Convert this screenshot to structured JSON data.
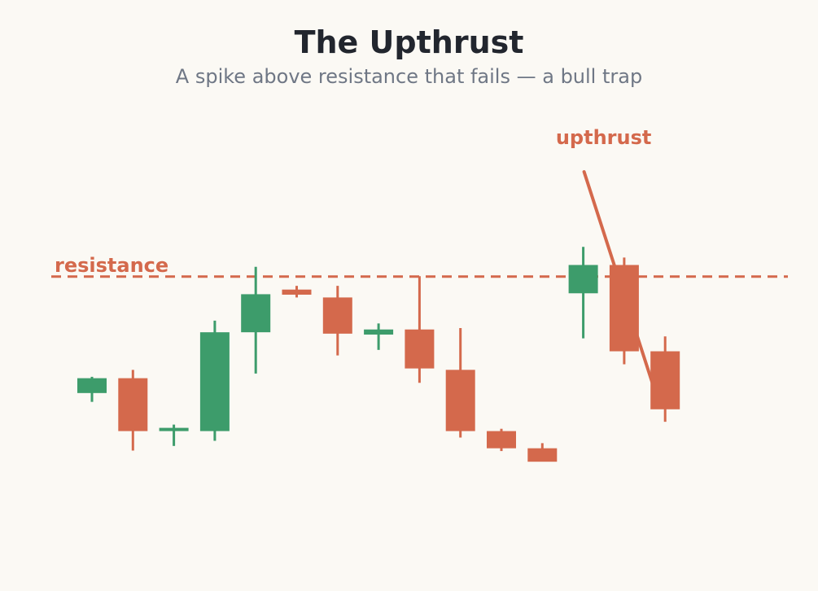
{
  "title": "The Upthrust",
  "subtitle": "A spike above resistance that fails — a bull trap",
  "colors": {
    "up": "#3d9c6b",
    "down": "#d4694c",
    "resistance": "#d4694c",
    "background": "#fbf9f4"
  },
  "chart_data": {
    "type": "candlestick",
    "title": "The Upthrust",
    "subtitle": "A spike above resistance that fails — a bull trap",
    "ylim": [
      0,
      100
    ],
    "grid": false,
    "resistance": {
      "label": "resistance",
      "value": 63.2
    },
    "annotation": {
      "label": "upthrust",
      "candle_index": 12
    },
    "candles": [
      {
        "open": 38.1,
        "high": 41.6,
        "low": 36.2,
        "close": 41.3
      },
      {
        "open": 41.3,
        "high": 43.1,
        "low": 25.7,
        "close": 29.9
      },
      {
        "open": 29.9,
        "high": 31.3,
        "low": 26.7,
        "close": 30.6
      },
      {
        "open": 29.9,
        "high": 53.7,
        "low": 27.8,
        "close": 51.2
      },
      {
        "open": 51.2,
        "high": 65.3,
        "low": 42.3,
        "close": 59.4
      },
      {
        "open": 60.4,
        "high": 61.2,
        "low": 58.7,
        "close": 59.3
      },
      {
        "open": 58.7,
        "high": 61.2,
        "low": 46.2,
        "close": 50.9
      },
      {
        "open": 50.7,
        "high": 53.1,
        "low": 47.4,
        "close": 51.8
      },
      {
        "open": 51.8,
        "high": 63.3,
        "low": 40.3,
        "close": 43.4
      },
      {
        "open": 43.1,
        "high": 52.1,
        "low": 28.5,
        "close": 29.9
      },
      {
        "open": 29.9,
        "high": 30.4,
        "low": 25.6,
        "close": 26.2
      },
      {
        "open": 26.2,
        "high": 27.3,
        "low": 23.9,
        "close": 23.3
      },
      {
        "open": 59.6,
        "high": 69.6,
        "low": 49.9,
        "close": 65.7
      },
      {
        "open": 65.7,
        "high": 67.3,
        "low": 44.3,
        "close": 47.1
      },
      {
        "open": 47.1,
        "high": 50.3,
        "low": 31.9,
        "close": 34.6
      }
    ]
  }
}
